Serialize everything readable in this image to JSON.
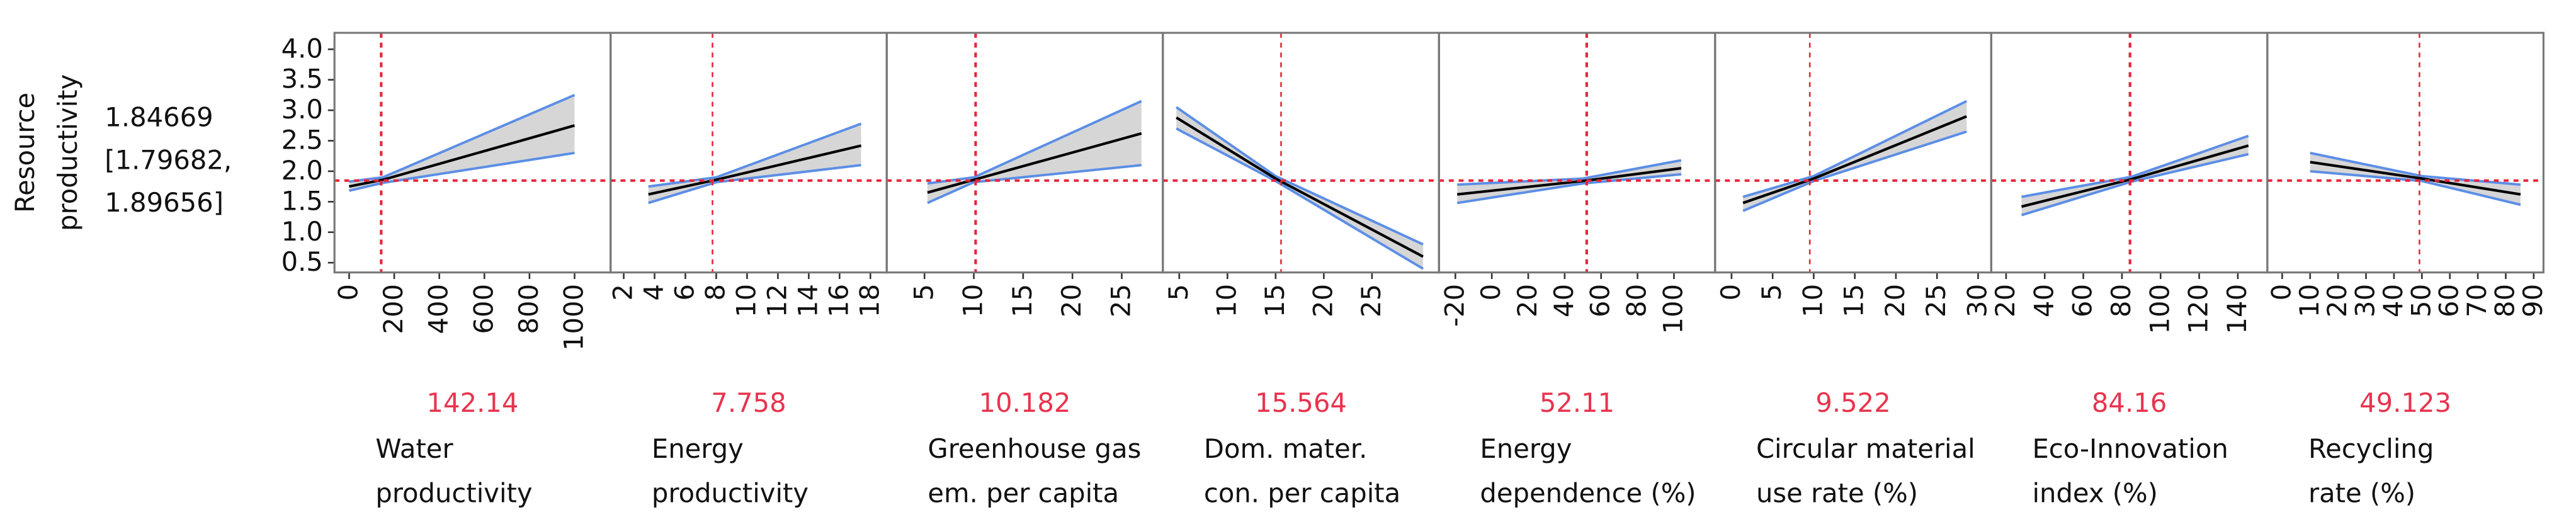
{
  "y_axis": {
    "label": [
      "Resource",
      "productivity"
    ],
    "prediction": 1.84669,
    "interval": [
      1.79682,
      1.89656
    ],
    "interval_labels": [
      "[1.79682,",
      "1.89656]"
    ],
    "ylim": [
      0.34,
      4.27
    ],
    "yticks": [
      {
        "value": 4,
        "label": "4.0"
      },
      3.5,
      {
        "value": 3,
        "label": "3.0"
      },
      2.5,
      {
        "value": 2,
        "label": "2.0"
      },
      1.5,
      {
        "value": 1,
        "label": "1.0"
      },
      0.5
    ]
  },
  "chart_data": [
    {
      "type": "line",
      "x_label": [
        "Water",
        "productivity"
      ],
      "current": 142.14,
      "xlim": [
        -65,
        1160
      ],
      "xticks": [
        0,
        200,
        400,
        600,
        800,
        1000
      ],
      "x": [
        0,
        150,
        1000
      ],
      "values": [
        1.75,
        1.86,
        2.75
      ],
      "lower": [
        1.68,
        1.81,
        2.3
      ],
      "upper": [
        1.83,
        1.9,
        3.25
      ]
    },
    {
      "type": "line",
      "x_label": [
        "Energy",
        "productivity"
      ],
      "current": 7.758,
      "xlim": [
        1.15,
        19.06
      ],
      "xticks": [
        2,
        4,
        6,
        8,
        10,
        12,
        14,
        16,
        18
      ],
      "x": [
        3.6,
        8,
        17.4
      ],
      "values": [
        1.62,
        1.86,
        2.42
      ],
      "lower": [
        1.48,
        1.82,
        2.1
      ],
      "upper": [
        1.75,
        1.9,
        2.78
      ]
    },
    {
      "type": "line",
      "x_label": [
        "Greenhouse gas",
        "em. per capita"
      ],
      "current": 10.182,
      "xlim": [
        1.17,
        29.17
      ],
      "xticks": [
        5,
        10,
        15,
        20,
        25
      ],
      "x": [
        5.3,
        10,
        27
      ],
      "values": [
        1.65,
        1.86,
        2.62
      ],
      "lower": [
        1.48,
        1.82,
        2.1
      ],
      "upper": [
        1.8,
        1.9,
        3.15
      ]
    },
    {
      "type": "line",
      "x_label": [
        "Dom. mater.",
        "con. per capita"
      ],
      "current": 15.564,
      "xlim": [
        3.3,
        31.95
      ],
      "xticks": [
        5,
        10,
        15,
        20,
        25
      ],
      "x": [
        4.7,
        15,
        30.3
      ],
      "values": [
        2.88,
        1.88,
        0.6
      ],
      "lower": [
        2.7,
        1.84,
        0.4
      ],
      "upper": [
        3.05,
        1.92,
        0.8
      ]
    },
    {
      "type": "line",
      "x_label": [
        "Energy",
        "dependence (%)"
      ],
      "current": 52.11,
      "xlim": [
        -29,
        122.6
      ],
      "xticks": [
        -20,
        0,
        20,
        40,
        60,
        80,
        100
      ],
      "x": [
        -19,
        50,
        104
      ],
      "values": [
        1.62,
        1.84,
        2.05
      ],
      "lower": [
        1.48,
        1.8,
        1.95
      ],
      "upper": [
        1.78,
        1.88,
        2.18
      ]
    },
    {
      "type": "line",
      "x_label": [
        "Circular material",
        "use rate (%)"
      ],
      "current": 9.522,
      "xlim": [
        -2,
        31.6
      ],
      "xticks": [
        0,
        5,
        10,
        15,
        20,
        25,
        30
      ],
      "x": [
        1.4,
        10,
        28.6
      ],
      "values": [
        1.48,
        1.88,
        2.9
      ],
      "lower": [
        1.35,
        1.84,
        2.65
      ],
      "upper": [
        1.58,
        1.92,
        3.15
      ]
    },
    {
      "type": "line",
      "x_label": [
        "Eco-Innovation",
        "index (%)"
      ],
      "current": 84.16,
      "xlim": [
        12.3,
        155.3
      ],
      "xticks": [
        20,
        40,
        60,
        80,
        100,
        120,
        140
      ],
      "x": [
        28,
        85,
        145.5
      ],
      "values": [
        1.42,
        1.87,
        2.42
      ],
      "lower": [
        1.28,
        1.83,
        2.28
      ],
      "upper": [
        1.58,
        1.91,
        2.58
      ]
    },
    {
      "type": "line",
      "x_label": [
        "Recycling",
        "rate (%)"
      ],
      "current": 49.123,
      "xlim": [
        -5.3,
        93.5
      ],
      "xticks": [
        0,
        10,
        20,
        30,
        40,
        50,
        60,
        70,
        80,
        90
      ],
      "x": [
        10,
        50,
        85.3
      ],
      "values": [
        2.15,
        1.88,
        1.62
      ],
      "lower": [
        2.0,
        1.84,
        1.45
      ],
      "upper": [
        2.3,
        1.92,
        1.78
      ]
    }
  ]
}
